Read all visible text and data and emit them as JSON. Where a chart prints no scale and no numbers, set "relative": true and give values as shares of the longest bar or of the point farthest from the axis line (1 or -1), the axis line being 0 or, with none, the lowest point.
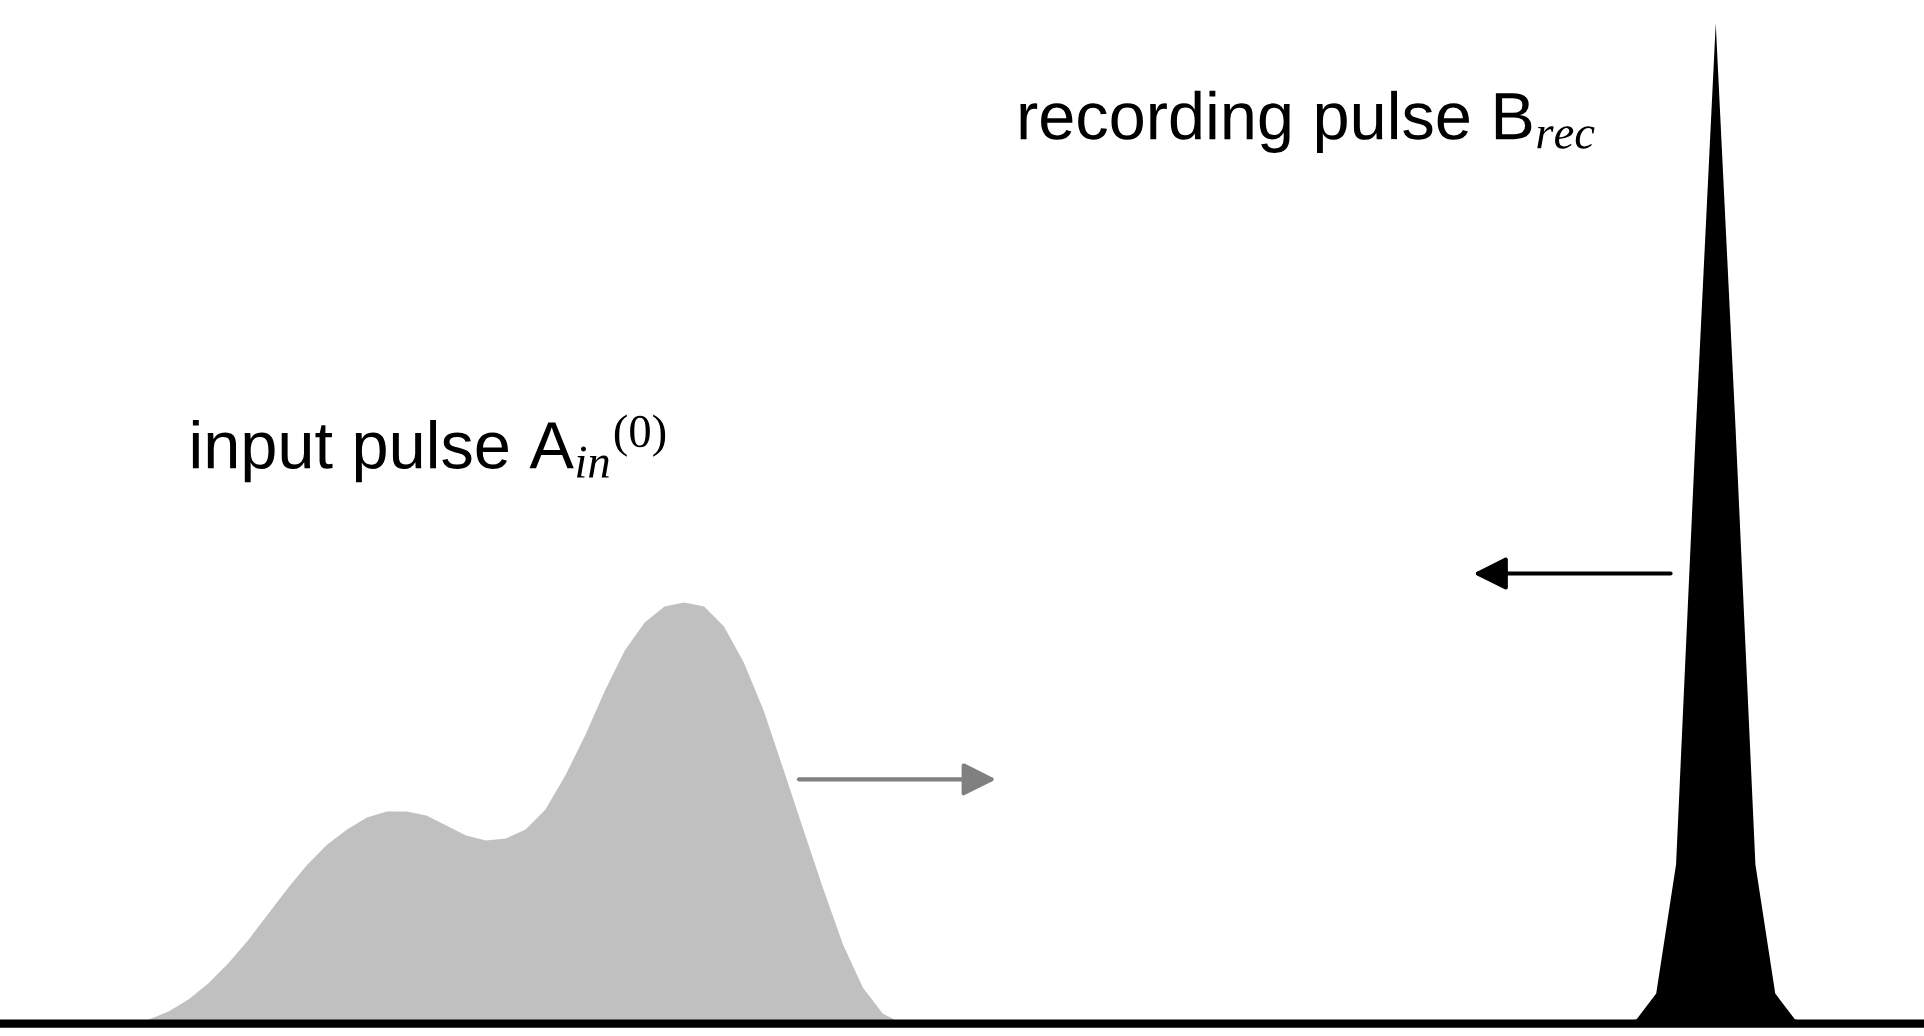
{
  "chart_data": {
    "type": "area",
    "relative": true,
    "categories": [
      null,
      null,
      null,
      null,
      null,
      null,
      null,
      null,
      null,
      null,
      null,
      null,
      null,
      null,
      null,
      null,
      null,
      null,
      null,
      null,
      null,
      null,
      null,
      null,
      null,
      null,
      null,
      null,
      null,
      null,
      null,
      null,
      null,
      null,
      null,
      null,
      null,
      null,
      null,
      null,
      null,
      null,
      null,
      null,
      null,
      null,
      null,
      null,
      null,
      null,
      null,
      null,
      null,
      null,
      null,
      null,
      null,
      null,
      null,
      null,
      null,
      null,
      null,
      null,
      null,
      null,
      null,
      null,
      null,
      null,
      null,
      null,
      null,
      null,
      null,
      null,
      null,
      null,
      null,
      null,
      null,
      null,
      null,
      null,
      null,
      null,
      null,
      null,
      null,
      null,
      null,
      null,
      null,
      null,
      null,
      null,
      null
    ],
    "series": [
      {
        "name": "input pulse A$_{in}$$^{(0)}$",
        "color": "#c0c0c0",
        "values": [
          null,
          null,
          null,
          null,
          null,
          null,
          0,
          0.004,
          0.012,
          0.024,
          0.04,
          0.06,
          0.083,
          0.109,
          0.135,
          0.159,
          0.179,
          0.194,
          0.206,
          0.212,
          0.212,
          0.208,
          0.198,
          0.188,
          0.183,
          0.185,
          0.194,
          0.214,
          0.248,
          0.288,
          0.333,
          0.373,
          0.401,
          0.417,
          0.421,
          0.417,
          0.397,
          0.361,
          0.313,
          0.254,
          0.194,
          0.135,
          0.079,
          0.036,
          0.01,
          0,
          null,
          null,
          null,
          null,
          null,
          null,
          null,
          null,
          null,
          null,
          null,
          null,
          null,
          null,
          null,
          null,
          null,
          null,
          null,
          null,
          null,
          null,
          null,
          null,
          null,
          null,
          null,
          null,
          null,
          null,
          null,
          null,
          null,
          null,
          null,
          null,
          null,
          null,
          null,
          null,
          null,
          null,
          null,
          null,
          null,
          null,
          null,
          null,
          null,
          null,
          null
        ]
      },
      {
        "name": "recording pulse B$_{rec}$",
        "color": "#000000",
        "values": [
          null,
          null,
          null,
          null,
          null,
          null,
          null,
          null,
          null,
          null,
          null,
          null,
          null,
          null,
          null,
          null,
          null,
          null,
          null,
          null,
          null,
          null,
          null,
          null,
          null,
          null,
          null,
          null,
          null,
          null,
          null,
          null,
          null,
          null,
          null,
          null,
          null,
          null,
          null,
          null,
          null,
          null,
          null,
          null,
          null,
          null,
          null,
          null,
          null,
          null,
          null,
          null,
          null,
          null,
          null,
          null,
          null,
          null,
          null,
          null,
          null,
          null,
          null,
          null,
          null,
          null,
          null,
          null,
          null,
          null,
          null,
          null,
          null,
          null,
          null,
          null,
          null,
          null,
          null,
          null,
          null,
          0,
          0.004,
          0.03,
          0.159,
          0.595,
          1,
          0.595,
          0.159,
          0.03,
          0.004,
          0,
          null,
          null,
          null,
          null,
          null
        ]
      }
    ]
  }
}
